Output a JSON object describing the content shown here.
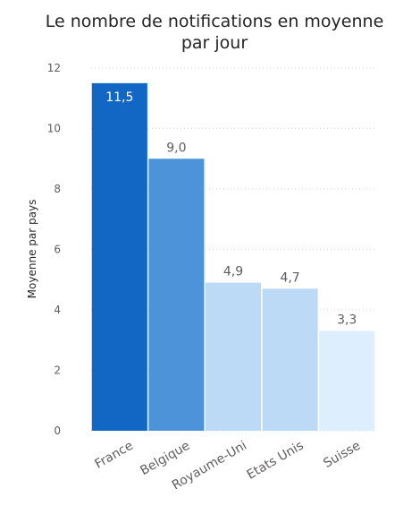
{
  "chart_data": {
    "type": "bar",
    "title_lines": [
      "Le nombre de notifications en moyenne",
      "par jour"
    ],
    "xlabel": "",
    "ylabel": "Moyenne par pays",
    "ylim": [
      0,
      12
    ],
    "yticks": [
      "0",
      "2",
      "4",
      "6",
      "8",
      "10",
      "12"
    ],
    "grid": true,
    "categories": [
      "France",
      "Belgique",
      "Royaume-Uni",
      "Etats Unis",
      "Suisse"
    ],
    "values": [
      11.5,
      9.0,
      4.9,
      4.7,
      3.3
    ],
    "data_labels": [
      "11,5",
      "9,0",
      "4,9",
      "4,7",
      "3,3"
    ],
    "bar_colors": [
      "#1167c3",
      "#4d93d9",
      "#bcd9f5",
      "#bcd9f5",
      "#ddeeff"
    ],
    "label_colors": [
      "#ffffff",
      "#605e5c",
      "#605e5c",
      "#605e5c",
      "#605e5c"
    ],
    "grid_color": "#d9d9d9"
  }
}
